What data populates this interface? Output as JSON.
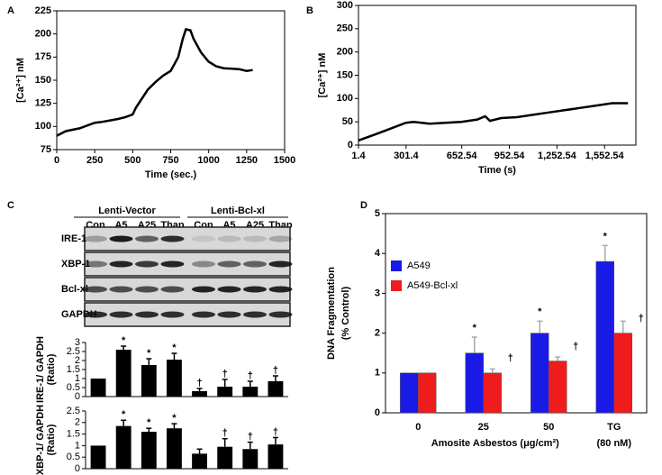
{
  "chart_data": [
    {
      "type": "line",
      "panel": "A",
      "xlabel": "Time (sec.)",
      "ylabel": [
        "[Ca²⁺] nM"
      ],
      "color": "#000000",
      "x": [
        0,
        60,
        150,
        250,
        300,
        400,
        450,
        500,
        520,
        560,
        600,
        650,
        700,
        750,
        800,
        830,
        850,
        880,
        900,
        950,
        1000,
        1050,
        1100,
        1200,
        1250,
        1290
      ],
      "values": [
        90,
        95,
        98,
        104,
        105,
        108,
        110,
        113,
        120,
        130,
        140,
        148,
        155,
        160,
        175,
        195,
        205,
        204,
        195,
        180,
        170,
        165,
        163,
        162,
        160,
        161
      ],
      "xlim": [
        0,
        1500
      ],
      "xticks": [
        0,
        250,
        500,
        750,
        1000,
        1250,
        1500
      ],
      "ylim": [
        75,
        225
      ],
      "yticks": [
        75,
        100,
        125,
        150,
        175,
        200,
        225
      ]
    },
    {
      "type": "line",
      "panel": "B",
      "xlabel": "Time (s)",
      "ylabel": [
        "[Ca²⁺] nM"
      ],
      "color": "#000000",
      "x": [
        1.4,
        100,
        200,
        300,
        350,
        450,
        550,
        650,
        750,
        800,
        830,
        900,
        1000,
        1100,
        1200,
        1300,
        1400,
        1500,
        1600,
        1700
      ],
      "values": [
        10,
        22,
        35,
        48,
        50,
        46,
        48,
        50,
        55,
        62,
        52,
        58,
        60,
        65,
        70,
        75,
        80,
        85,
        90,
        90
      ],
      "xlim": [
        1.4,
        1750
      ],
      "xticks": [
        1.4,
        301.4,
        652.54,
        952.54,
        {
          "value": 1252.54,
          "label": "1,252.54"
        },
        {
          "value": 1552.54,
          "label": "1,552.54"
        }
      ],
      "ylim": [
        0,
        300
      ],
      "yticks": [
        0,
        50,
        100,
        150,
        200,
        250,
        300
      ]
    },
    {
      "type": "bar",
      "panel": "C",
      "ylabel": [
        "IRE-1/ GAPDH",
        "(Ratio)"
      ],
      "color": "#000000",
      "values": [
        1,
        2.6,
        1.75,
        2.05,
        0.3,
        0.55,
        0.55,
        0.85
      ],
      "errors": [
        0,
        0.2,
        0.35,
        0.35,
        0.15,
        0.4,
        0.3,
        0.3
      ],
      "markers": [
        null,
        "*",
        "*",
        "*",
        "†",
        "†",
        "†",
        "†"
      ],
      "ylim": [
        0,
        3
      ],
      "yticks": [
        0,
        0.5,
        1,
        1.5,
        2,
        2.5,
        3
      ]
    },
    {
      "type": "bar",
      "ylabel": [
        "XBP-1/ GAPDH",
        "(Ratio)"
      ],
      "color": "#000000",
      "values": [
        1,
        1.85,
        1.6,
        1.75,
        0.65,
        0.95,
        0.85,
        1.05
      ],
      "errors": [
        0,
        0.25,
        0.15,
        0.2,
        0.2,
        0.35,
        0.3,
        0.3
      ],
      "markers": [
        null,
        "*",
        "*",
        "*",
        null,
        "†",
        "†",
        "†"
      ],
      "ylim": [
        0,
        2.5
      ],
      "yticks": [
        0,
        0.5,
        1,
        1.5,
        2,
        2.5
      ]
    },
    {
      "type": "bar",
      "panel": "D",
      "xlabel": "Amosite Asbestos (μg/cm²)",
      "ylabel": [
        "DNA Fragmentation",
        "(% Control)"
      ],
      "categories": [
        "0",
        "25",
        "50",
        "TG"
      ],
      "x_annotation": "(80 nM)",
      "series": [
        {
          "name": "A549",
          "color": "#1a1ae6",
          "values": [
            1,
            1.5,
            2,
            3.8
          ],
          "errors": [
            0,
            0.4,
            0.3,
            0.4
          ],
          "markers": [
            null,
            "*",
            "*",
            "*"
          ]
        },
        {
          "name": "A549-Bcl-xl",
          "color": "#ee1c1c",
          "values": [
            1,
            1,
            1.3,
            2
          ],
          "errors": [
            0,
            0.1,
            0.1,
            0.3
          ],
          "markers": [
            null,
            "†",
            "†",
            "†"
          ]
        }
      ],
      "ylim": [
        0,
        5
      ],
      "yticks": [
        0,
        1,
        2,
        3,
        4,
        5
      ]
    }
  ],
  "blot": {
    "groups": [
      "Lenti-Vector",
      "Lenti-Bcl-xl"
    ],
    "lanes": [
      "Con",
      "A5",
      "A25",
      "Thap",
      "Con",
      "A5",
      "A25",
      "Thap"
    ],
    "rows": [
      "IRE-1",
      "XBP-1",
      "Bcl-xl",
      "GAPDH"
    ]
  }
}
